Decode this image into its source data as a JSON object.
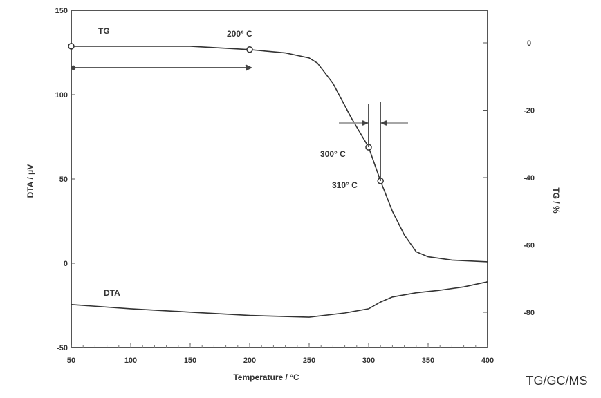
{
  "chart_data": {
    "type": "line",
    "xlabel": "Temperature  /  °C",
    "ylabel_left": "DTA  /  μV",
    "ylabel_right": "TG  /  %",
    "xlim": [
      50,
      400
    ],
    "ylim_left": [
      -50,
      150
    ],
    "ylim_right": [
      -80,
      0
    ],
    "xticks": [
      "50",
      "100",
      "150",
      "200",
      "250",
      "300",
      "350",
      "400"
    ],
    "yticks_left": [
      "150",
      "100",
      "50",
      "0",
      "-50"
    ],
    "yticks_right": [
      "0",
      "-20",
      "-40",
      "-60",
      "-80"
    ],
    "grid": false,
    "series": [
      {
        "name": "TG",
        "axis": "right",
        "x": [
          50,
          100,
          150,
          200,
          230,
          250,
          257,
          270,
          285,
          300,
          310,
          320,
          330,
          340,
          350,
          370,
          400
        ],
        "y": [
          -1,
          -1,
          -1,
          -2,
          -3,
          -4.5,
          -6,
          -12,
          -22,
          -31,
          -41,
          -50,
          -57,
          -62,
          -63.5,
          -64.5,
          -65
        ]
      },
      {
        "name": "DTA",
        "axis": "left",
        "x": [
          50,
          100,
          150,
          200,
          250,
          280,
          300,
          310,
          320,
          340,
          360,
          380,
          400
        ],
        "y": [
          -24.5,
          -27,
          -29,
          -31,
          -32,
          -29.5,
          -27,
          -23,
          -20,
          -17.5,
          -16,
          -14,
          -11
        ]
      }
    ],
    "annotations": [
      {
        "text": "TG",
        "x": 75,
        "y": 143
      },
      {
        "text": "200° C",
        "x": 200,
        "y": 140
      },
      {
        "text": "300° C",
        "x": 278,
        "y": 102
      },
      {
        "text": "310° C",
        "x": 288,
        "y": 82
      },
      {
        "text": "DTA",
        "x": 82,
        "y": -17
      }
    ],
    "markers": [
      {
        "x": 50,
        "y_tg": -1
      },
      {
        "x": 200,
        "y_tg": -2
      },
      {
        "x": 300,
        "y_tg": -31
      },
      {
        "x": 310,
        "y_tg": -41
      }
    ]
  },
  "footer": "TG/GC/MS"
}
